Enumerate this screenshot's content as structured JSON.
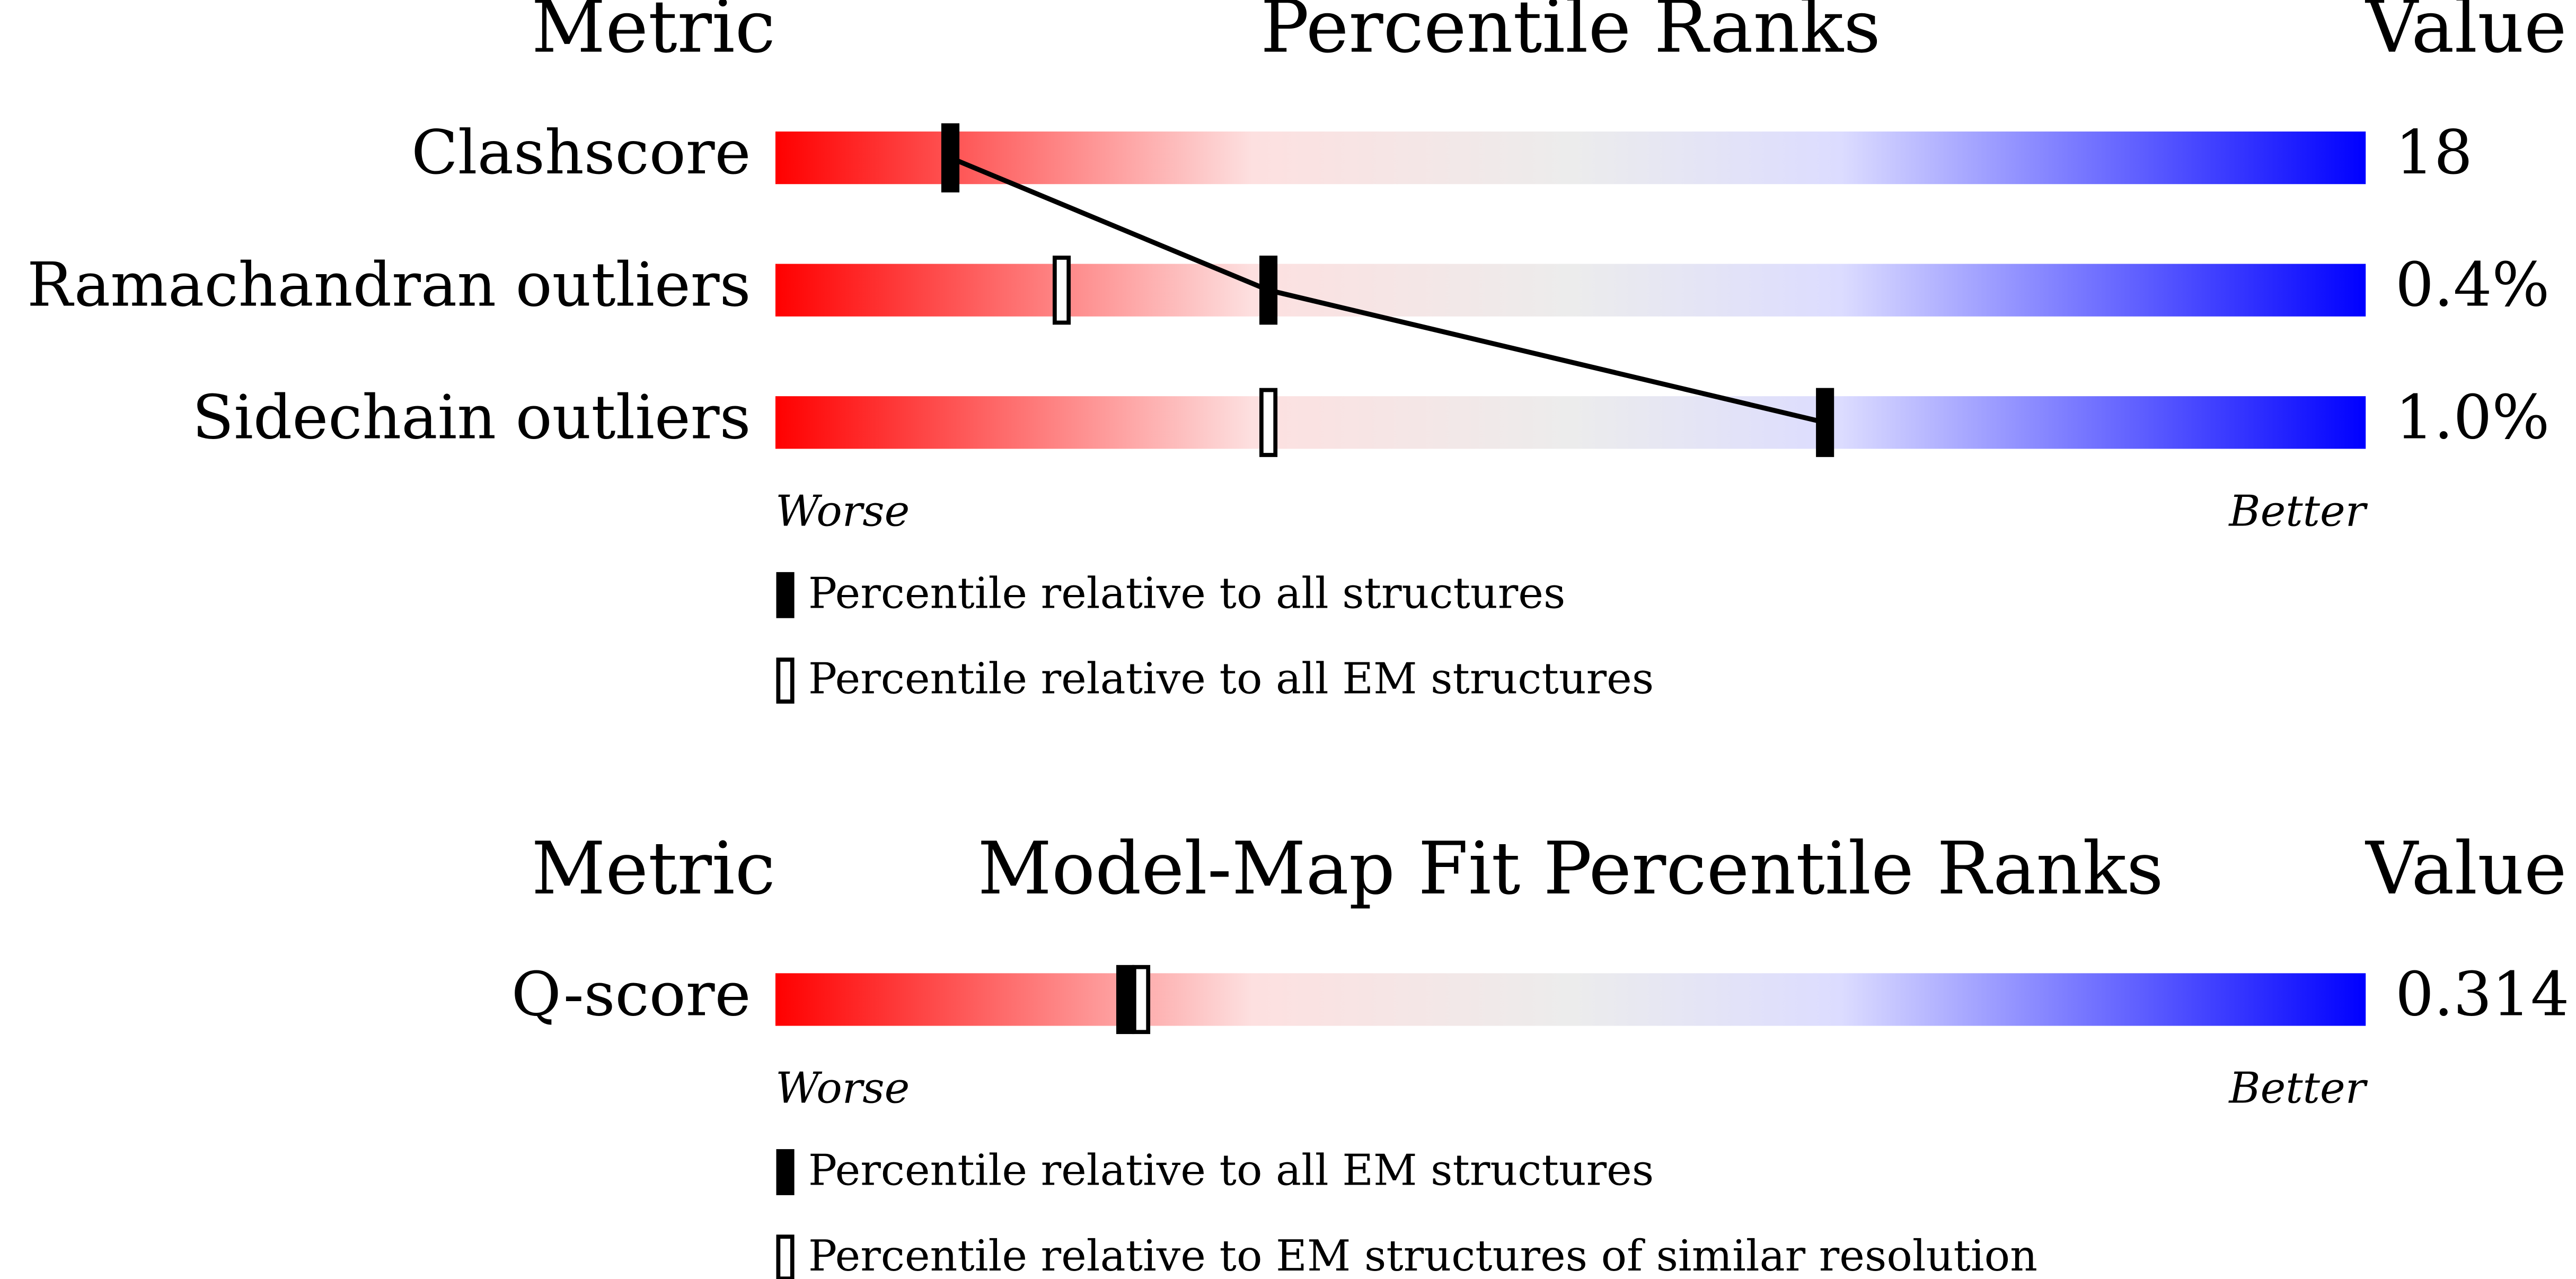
{
  "panels": [
    {
      "header": {
        "metric": "Metric",
        "title": "Percentile Ranks",
        "value": "Value"
      },
      "xlim": [
        0,
        100
      ],
      "markers": [
        {
          "style": "filled",
          "label": "Percentile relative to all structures"
        },
        {
          "style": "outline",
          "label": "Percentile relative to all EM structures"
        }
      ],
      "rows": [
        {
          "metric": "Clashscore",
          "value": "18",
          "percentiles": [
            11,
            11
          ]
        },
        {
          "metric": "Ramachandran outliers",
          "value": "0.4%",
          "percentiles": [
            31,
            18
          ]
        },
        {
          "metric": "Sidechain outliers",
          "value": "1.0%",
          "percentiles": [
            66,
            31
          ]
        }
      ],
      "axis": {
        "worse": "Worse",
        "better": "Better"
      }
    },
    {
      "header": {
        "metric": "Metric",
        "title": "Model-Map Fit Percentile Ranks",
        "value": "Value"
      },
      "xlim": [
        0,
        100
      ],
      "markers": [
        {
          "style": "filled",
          "label": "Percentile relative to all EM structures"
        },
        {
          "style": "outline",
          "label": "Percentile relative to EM structures of similar resolution"
        }
      ],
      "rows": [
        {
          "metric": "Q-score",
          "value": "0.314",
          "percentiles": [
            22,
            23
          ]
        }
      ],
      "axis": {
        "worse": "Worse",
        "better": "Better"
      }
    }
  ]
}
